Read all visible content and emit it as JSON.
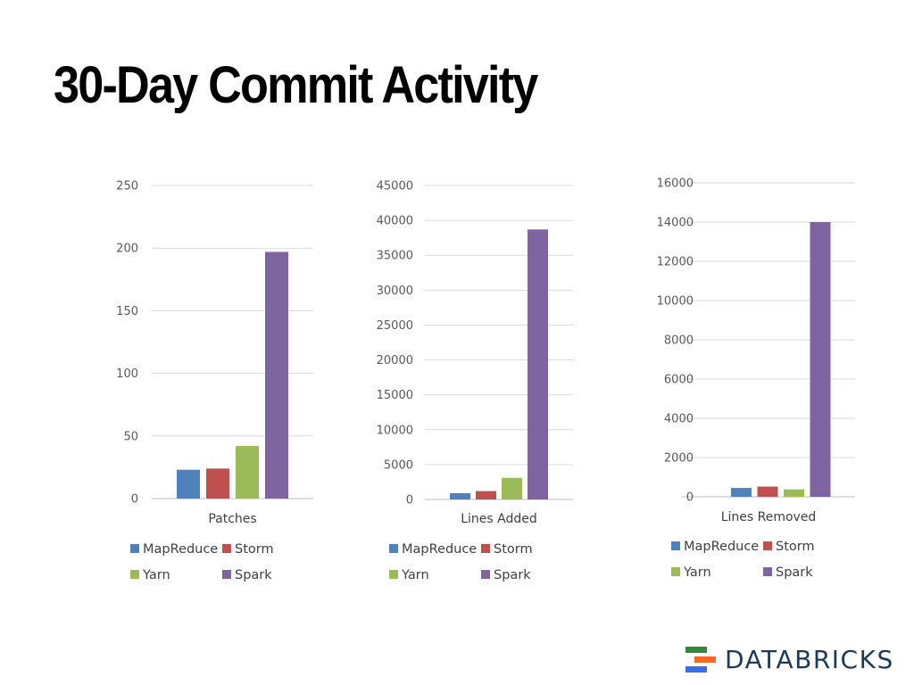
{
  "title": "30-Day Commit Activity",
  "logo": {
    "text": "DATABRICKS",
    "bar_colors": [
      "#2e8b3d",
      "#f26b21",
      "#3a6ee8"
    ]
  },
  "series_colors": {
    "MapReduce": "#4f81bd",
    "Storm": "#c0504d",
    "Yarn": "#9bbb59",
    "Spark": "#8064a2"
  },
  "legend": [
    "MapReduce",
    "Storm",
    "Yarn",
    "Spark"
  ],
  "chart_data": [
    {
      "type": "bar",
      "categories": [
        "Patches"
      ],
      "series": [
        {
          "name": "MapReduce",
          "values": [
            23
          ]
        },
        {
          "name": "Storm",
          "values": [
            24
          ]
        },
        {
          "name": "Yarn",
          "values": [
            42
          ]
        },
        {
          "name": "Spark",
          "values": [
            197
          ]
        }
      ],
      "ylim": [
        0,
        250
      ],
      "yticks": [
        0,
        50,
        100,
        150,
        200,
        250
      ],
      "grid": true,
      "legend_position": "bottom"
    },
    {
      "type": "bar",
      "categories": [
        "Lines Added"
      ],
      "series": [
        {
          "name": "MapReduce",
          "values": [
            900
          ]
        },
        {
          "name": "Storm",
          "values": [
            1200
          ]
        },
        {
          "name": "Yarn",
          "values": [
            3100
          ]
        },
        {
          "name": "Spark",
          "values": [
            38700
          ]
        }
      ],
      "ylim": [
        0,
        45000
      ],
      "yticks": [
        0,
        5000,
        10000,
        15000,
        20000,
        25000,
        30000,
        35000,
        40000,
        45000
      ],
      "grid": true,
      "legend_position": "bottom"
    },
    {
      "type": "bar",
      "categories": [
        "Lines Removed"
      ],
      "series": [
        {
          "name": "MapReduce",
          "values": [
            450
          ]
        },
        {
          "name": "Storm",
          "values": [
            520
          ]
        },
        {
          "name": "Yarn",
          "values": [
            380
          ]
        },
        {
          "name": "Spark",
          "values": [
            14000
          ]
        }
      ],
      "ylim": [
        0,
        16000
      ],
      "yticks": [
        0,
        2000,
        4000,
        6000,
        8000,
        10000,
        12000,
        14000,
        16000
      ],
      "grid": true,
      "legend_position": "bottom"
    }
  ]
}
